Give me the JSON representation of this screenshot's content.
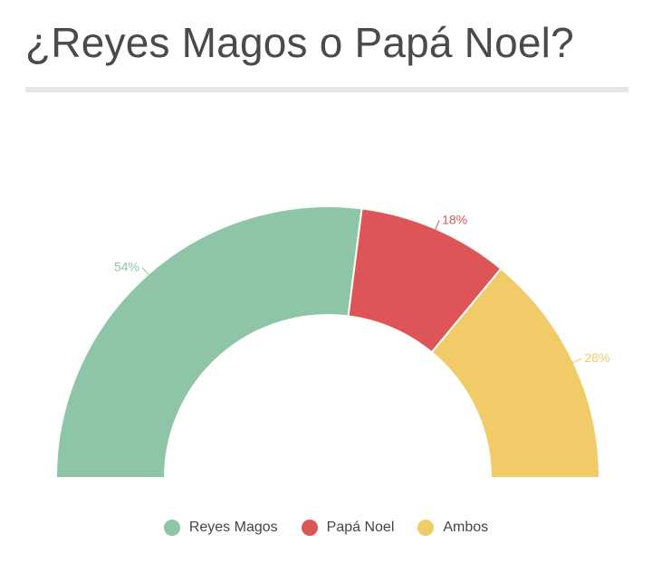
{
  "title": "¿Reyes Magos o Papá Noel?",
  "chart_data": {
    "type": "pie",
    "subtype": "half-donut",
    "series": [
      {
        "name": "Reyes Magos",
        "value": 54,
        "label": "54%",
        "color": "#8dc5a6"
      },
      {
        "name": "Papá Noel",
        "value": 18,
        "label": "18%",
        "color": "#de5558"
      },
      {
        "name": "Ambos",
        "value": 28,
        "label": "28%",
        "color": "#f1cb68"
      }
    ],
    "legend_position": "bottom"
  }
}
